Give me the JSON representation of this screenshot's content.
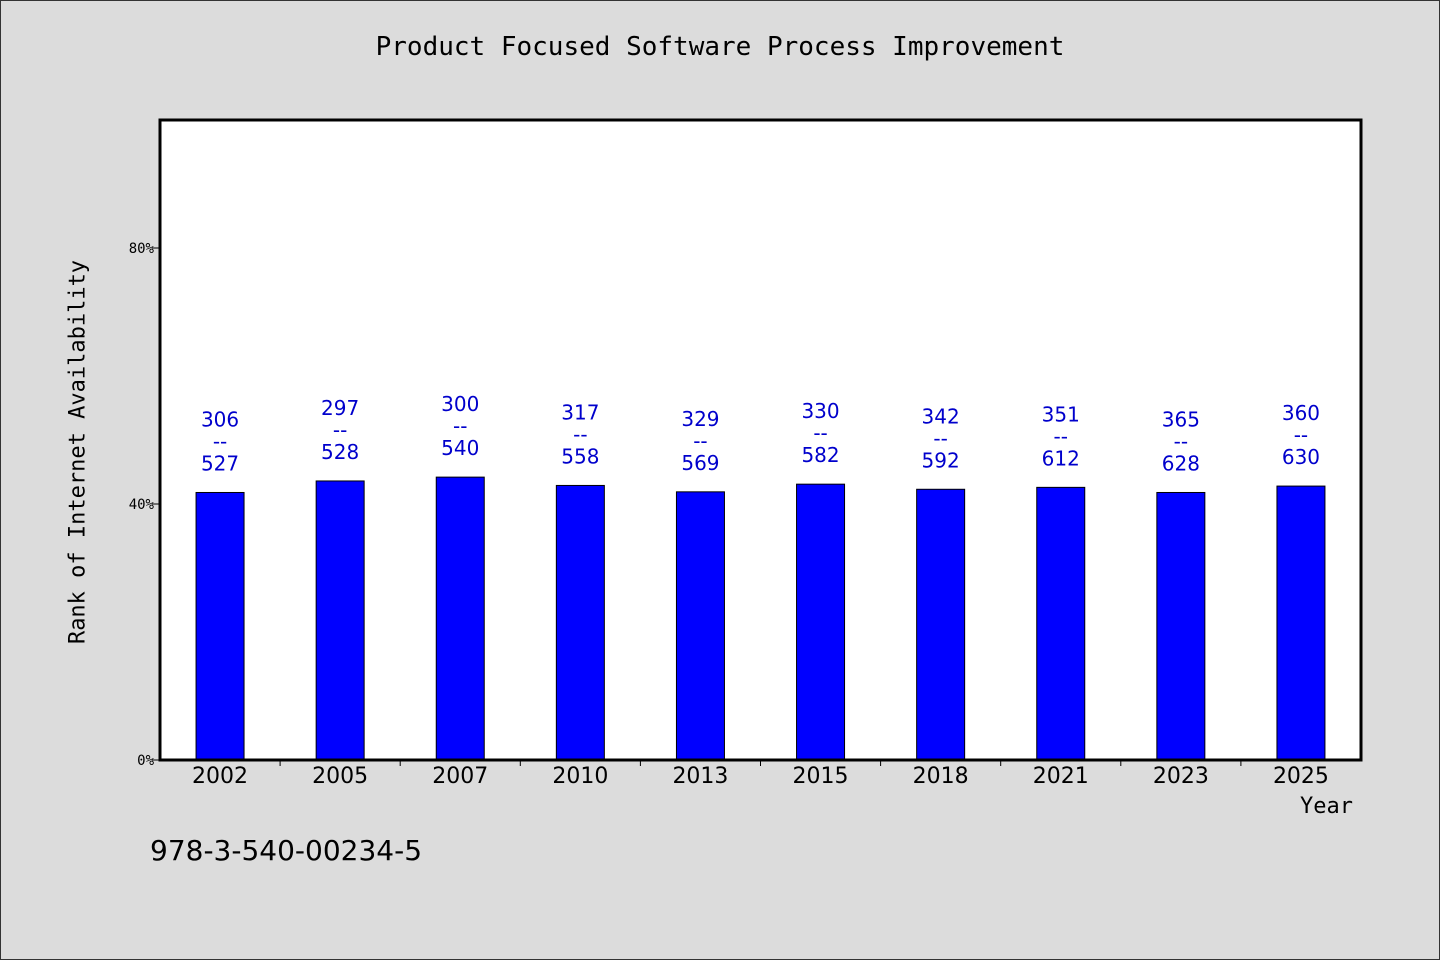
{
  "chart_data": {
    "type": "bar",
    "title": "Product Focused Software Process Improvement",
    "xlabel": "Year",
    "ylabel": "Rank of Internet Availability",
    "ylim": [
      0,
      100
    ],
    "yticks": [
      {
        "value": 0,
        "label": "0%"
      },
      {
        "value": 40,
        "label": "40%"
      },
      {
        "value": 80,
        "label": "80%"
      }
    ],
    "categories": [
      "2002",
      "2005",
      "2007",
      "2010",
      "2013",
      "2015",
      "2018",
      "2021",
      "2023",
      "2025"
    ],
    "values": [
      41.8,
      43.6,
      44.2,
      42.9,
      41.9,
      43.1,
      42.3,
      42.6,
      41.8,
      42.8
    ],
    "annotations": [
      {
        "top": "306",
        "sep": "--",
        "bottom": "527"
      },
      {
        "top": "297",
        "sep": "--",
        "bottom": "528"
      },
      {
        "top": "300",
        "sep": "--",
        "bottom": "540"
      },
      {
        "top": "317",
        "sep": "--",
        "bottom": "558"
      },
      {
        "top": "329",
        "sep": "--",
        "bottom": "569"
      },
      {
        "top": "330",
        "sep": "--",
        "bottom": "582"
      },
      {
        "top": "342",
        "sep": "--",
        "bottom": "592"
      },
      {
        "top": "351",
        "sep": "--",
        "bottom": "612"
      },
      {
        "top": "365",
        "sep": "--",
        "bottom": "628"
      },
      {
        "top": "360",
        "sep": "--",
        "bottom": "630"
      }
    ],
    "grid": false,
    "colors": {
      "bar": "#0000ff",
      "annotation": "#0000cc",
      "plot_bg": "#ffffff",
      "page_bg": "#dcdcdc"
    }
  },
  "footer": {
    "isbn": "978-3-540-00234-5"
  }
}
